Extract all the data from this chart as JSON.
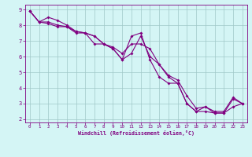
{
  "xlabel": "Windchill (Refroidissement éolien,°C)",
  "x_values": [
    0,
    1,
    2,
    3,
    4,
    5,
    6,
    7,
    8,
    9,
    10,
    11,
    12,
    13,
    14,
    15,
    16,
    17,
    18,
    19,
    20,
    21,
    22,
    23
  ],
  "line1": [
    8.9,
    8.2,
    8.5,
    8.3,
    8.0,
    7.6,
    7.5,
    7.3,
    6.8,
    6.5,
    5.8,
    7.3,
    7.5,
    5.8,
    4.7,
    4.3,
    4.3,
    3.0,
    2.5,
    2.8,
    2.5,
    2.5,
    3.4,
    3.0
  ],
  "line2": [
    8.9,
    8.2,
    8.2,
    8.0,
    7.9,
    7.6,
    7.5,
    7.3,
    6.8,
    6.6,
    6.2,
    6.8,
    6.8,
    6.5,
    5.5,
    4.7,
    4.3,
    3.0,
    2.5,
    2.5,
    2.4,
    2.4,
    2.8,
    3.0
  ],
  "line3": [
    8.9,
    8.2,
    8.1,
    7.9,
    7.9,
    7.5,
    7.5,
    6.8,
    6.8,
    6.5,
    5.8,
    6.2,
    7.3,
    6.0,
    5.5,
    4.8,
    4.5,
    3.5,
    2.7,
    2.8,
    2.4,
    2.4,
    3.3,
    3.0
  ],
  "line_color": "#800080",
  "bg_color": "#d4f5f5",
  "grid_color": "#a0c8c8",
  "axis_color": "#800080",
  "spine_color": "#800080",
  "xlim": [
    -0.5,
    23.5
  ],
  "ylim": [
    1.8,
    9.3
  ],
  "yticks": [
    2,
    3,
    4,
    5,
    6,
    7,
    8,
    9
  ],
  "xticks": [
    0,
    1,
    2,
    3,
    4,
    5,
    6,
    7,
    8,
    9,
    10,
    11,
    12,
    13,
    14,
    15,
    16,
    17,
    18,
    19,
    20,
    21,
    22,
    23
  ]
}
